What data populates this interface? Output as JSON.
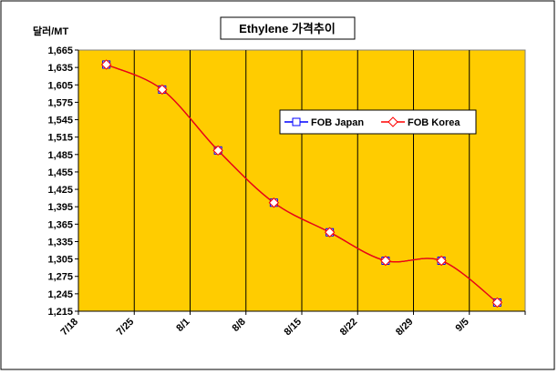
{
  "chart_data": {
    "type": "line",
    "title": "Ethylene 가격추이",
    "ylabel": "달러/MT",
    "xlabel": "",
    "categories": [
      "7/18",
      "7/25",
      "8/1",
      "8/8",
      "8/15",
      "8/22",
      "8/29",
      "9/5"
    ],
    "ylim": [
      1215,
      1665
    ],
    "yticks": [
      1215,
      1245,
      1275,
      1305,
      1335,
      1365,
      1395,
      1425,
      1455,
      1485,
      1515,
      1545,
      1575,
      1605,
      1635,
      1665
    ],
    "ytick_labels": [
      "1,215",
      "1,245",
      "1,275",
      "1,305",
      "1,335",
      "1,365",
      "1,395",
      "1,425",
      "1,455",
      "1,485",
      "1,515",
      "1,545",
      "1,575",
      "1,605",
      "1,635",
      "1,665"
    ],
    "series": [
      {
        "name": "FOB Japan",
        "color": "#0000ff",
        "marker": "square",
        "values": [
          1640,
          1597,
          1492,
          1402,
          1351,
          1302,
          1302,
          1230
        ]
      },
      {
        "name": "FOB Korea",
        "color": "#ff0000",
        "marker": "diamond",
        "values": [
          1640,
          1597,
          1492,
          1402,
          1351,
          1302,
          1302,
          1230
        ]
      }
    ],
    "legend_position": "center-right",
    "grid": {
      "vertical": true,
      "horizontal": false
    },
    "plot_background": "#ffcc00"
  }
}
